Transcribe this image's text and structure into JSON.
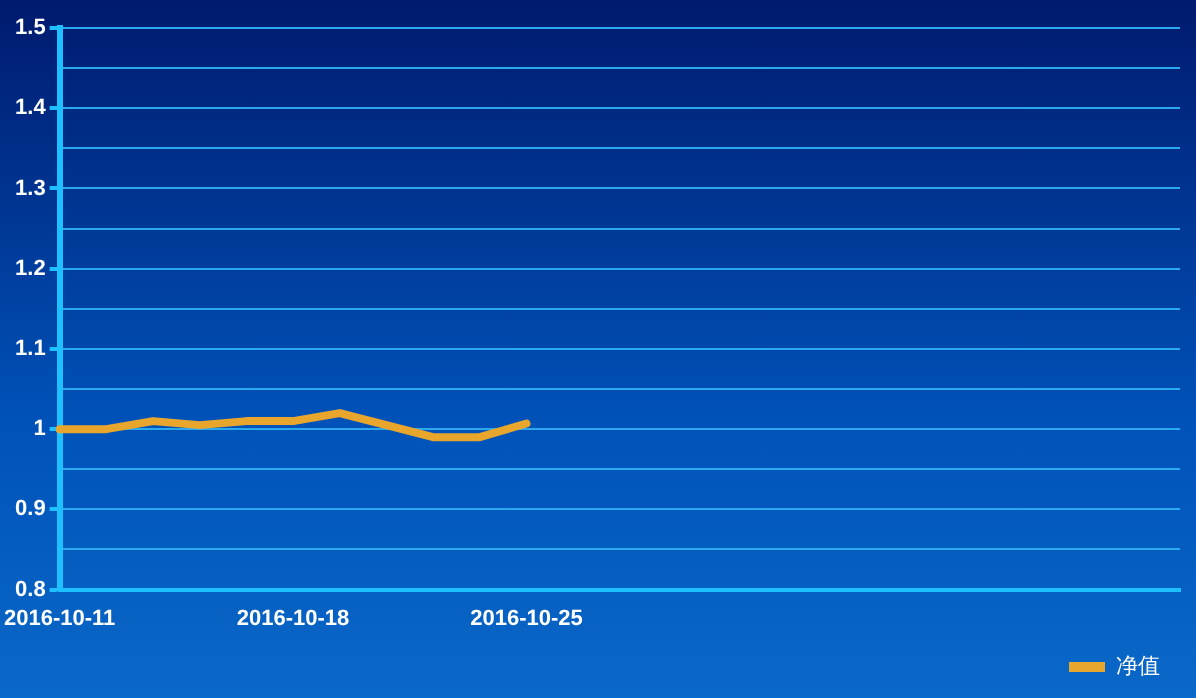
{
  "chart_data": {
    "type": "line",
    "categories": [
      "2016-10-11",
      null,
      null,
      null,
      null,
      "2016-10-18",
      null,
      null,
      null,
      null,
      "2016-10-25",
      null,
      null,
      null,
      null,
      null,
      null,
      null,
      null,
      null,
      null,
      null,
      null,
      null,
      null
    ],
    "series": [
      {
        "name": "净值",
        "color": "#e8a72c",
        "values": [
          1.0,
          1.0,
          1.01,
          1.005,
          1.01,
          1.01,
          1.02,
          1.005,
          0.99,
          0.99,
          1.007,
          null,
          null,
          null,
          null,
          null,
          null,
          null,
          null,
          null,
          null,
          null,
          null,
          null,
          null
        ]
      }
    ],
    "ylim": [
      0.8,
      1.5
    ],
    "yticks": [
      0.8,
      {
        "value": 0.85,
        "label": null
      },
      0.9,
      {
        "value": 0.95,
        "label": null
      },
      1,
      {
        "value": 1.05,
        "label": null
      },
      1.1,
      {
        "value": 1.15,
        "label": null
      },
      1.2,
      {
        "value": 1.25,
        "label": null
      },
      1.3,
      {
        "value": 1.35,
        "label": null
      },
      1.4,
      {
        "value": 1.45,
        "label": null
      },
      1.5
    ],
    "grid": "y",
    "legend": "bottom right",
    "marker": "none",
    "line_style": "solid"
  }
}
